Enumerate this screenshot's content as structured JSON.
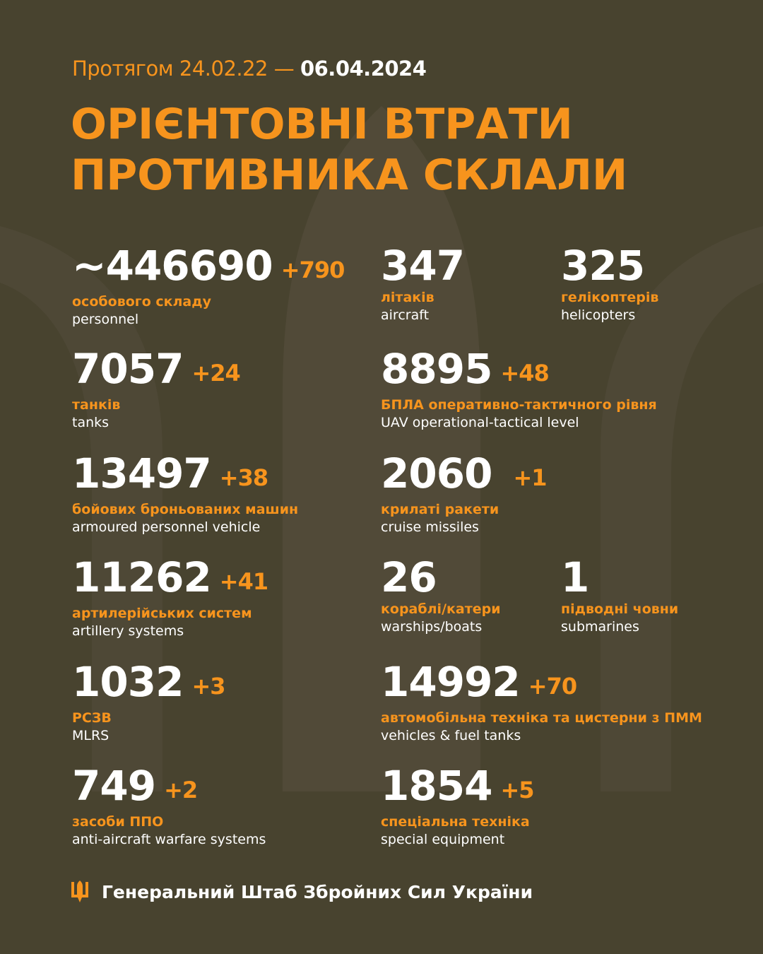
{
  "header": {
    "period_prefix": "Протягом 24.02.22 —",
    "date": "06.04.2024",
    "title_line1": "ОРІЄНТОВНІ ВТРАТИ",
    "title_line2": "ПРОТИВНИКА СКЛАЛИ"
  },
  "colors": {
    "background": "#48432f",
    "accent": "#f7941d",
    "text": "#ffffff"
  },
  "items": [
    {
      "value": "~446690",
      "delta": "+790",
      "ua": "особового складу",
      "en": "personnel"
    },
    {
      "value": "347",
      "delta": "",
      "ua": "літаків",
      "en": "aircraft"
    },
    {
      "value": "325",
      "delta": "",
      "ua": "гелікоптерів",
      "en": "helicopters"
    },
    {
      "value": "7057",
      "delta": "+24",
      "ua": "танків",
      "en": "tanks"
    },
    {
      "value": "8895",
      "delta": "+48",
      "ua": "БПЛА оперативно-тактичного рівня",
      "en": "UAV operational-tactical level"
    },
    {
      "value": "13497",
      "delta": "+38",
      "ua": "бойових броньованих машин",
      "en": "armoured personnel vehicle"
    },
    {
      "value": "2060",
      "delta": "+1",
      "ua": "крилаті ракети",
      "en": "cruise missiles"
    },
    {
      "value": "11262",
      "delta": "+41",
      "ua": "артилерійських систем",
      "en": "artillery systems"
    },
    {
      "value": "26",
      "delta": "",
      "ua": "кораблі/катери",
      "en": "warships/boats"
    },
    {
      "value": "1",
      "delta": "",
      "ua": "підводні човни",
      "en": "submarines"
    },
    {
      "value": "1032",
      "delta": "+3",
      "ua": "РСЗВ",
      "en": "MLRS"
    },
    {
      "value": "14992",
      "delta": "+70",
      "ua": "автомобільна техніка та цистерни з ПММ",
      "en": "vehicles & fuel tanks"
    },
    {
      "value": "749",
      "delta": "+2",
      "ua": "засоби ППО",
      "en": "anti-aircraft warfare systems"
    },
    {
      "value": "1854",
      "delta": "+5",
      "ua": "спеціальна техніка",
      "en": "special equipment"
    }
  ],
  "footer": {
    "icon": "trident-icon",
    "text": "Генеральний Штаб Збройних Сил України"
  }
}
